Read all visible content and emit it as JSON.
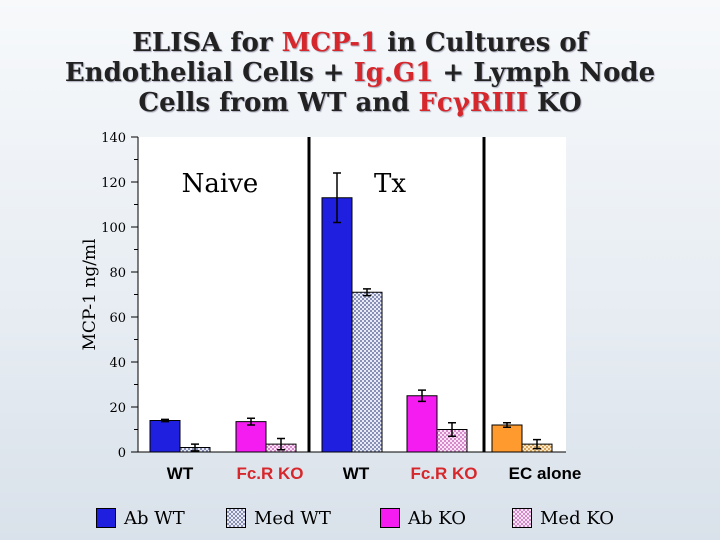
{
  "title": {
    "line1_pre": "ELISA for ",
    "line1_hl": "MCP-1",
    "line1_post": " in Cultures of",
    "line2_pre": "Endothelial Cells + ",
    "line2_hl": "Ig.G1",
    "line2_post": " + Lymph Node",
    "line3_pre": "Cells from WT and ",
    "line3_hl": "FcγRIII",
    "line3_post": " KO"
  },
  "colors": {
    "highlight": "#d6282c",
    "ab_wt": "#1f1fe0",
    "med_wt": "#d8dcec",
    "ab_ko": "#f41cf0",
    "med_ko": "#f0c8ec",
    "ec_ab": "#ff9a2e",
    "ec_med": "#f4d6a0",
    "group_label_red": "#d6282c"
  },
  "chart_data": {
    "type": "bar",
    "ylabel": "MCP-1 ng/ml",
    "ylim": [
      0,
      140
    ],
    "yticks": [
      "0",
      "20",
      "40",
      "60",
      "80",
      "100",
      "120",
      "140"
    ],
    "panel_labels": [
      "Naive",
      "Tx"
    ],
    "group_labels": [
      "WT",
      "Fc.R KO",
      "WT",
      "Fc.R KO",
      "EC alone"
    ],
    "bars": [
      {
        "group": 0,
        "series": "Ab WT",
        "value": 14,
        "err": 0.5,
        "style": "ab_wt"
      },
      {
        "group": 0,
        "series": "Med WT",
        "value": 2,
        "err": 1.5,
        "style": "med_wt"
      },
      {
        "group": 1,
        "series": "Ab KO",
        "value": 13.5,
        "err": 1.5,
        "style": "ab_ko"
      },
      {
        "group": 1,
        "series": "Med KO",
        "value": 3.5,
        "err": 2.5,
        "style": "med_ko"
      },
      {
        "group": 2,
        "series": "Ab WT",
        "value": 113,
        "err": 11,
        "style": "ab_wt"
      },
      {
        "group": 2,
        "series": "Med WT",
        "value": 71,
        "err": 1.5,
        "style": "med_wt"
      },
      {
        "group": 3,
        "series": "Ab KO",
        "value": 25,
        "err": 2.5,
        "style": "ab_ko"
      },
      {
        "group": 3,
        "series": "Med KO",
        "value": 10,
        "err": 3,
        "style": "med_ko"
      },
      {
        "group": 4,
        "series": "Ab",
        "value": 12,
        "err": 1,
        "style": "ec_ab"
      },
      {
        "group": 4,
        "series": "Med",
        "value": 3.5,
        "err": 2,
        "style": "ec_med"
      }
    ],
    "legend": [
      {
        "label": "Ab WT",
        "style": "ab_wt"
      },
      {
        "label": "Med WT",
        "style": "med_wt"
      },
      {
        "label": "Ab  KO",
        "style": "ab_ko"
      },
      {
        "label": "Med  KO",
        "style": "med_ko"
      }
    ]
  }
}
